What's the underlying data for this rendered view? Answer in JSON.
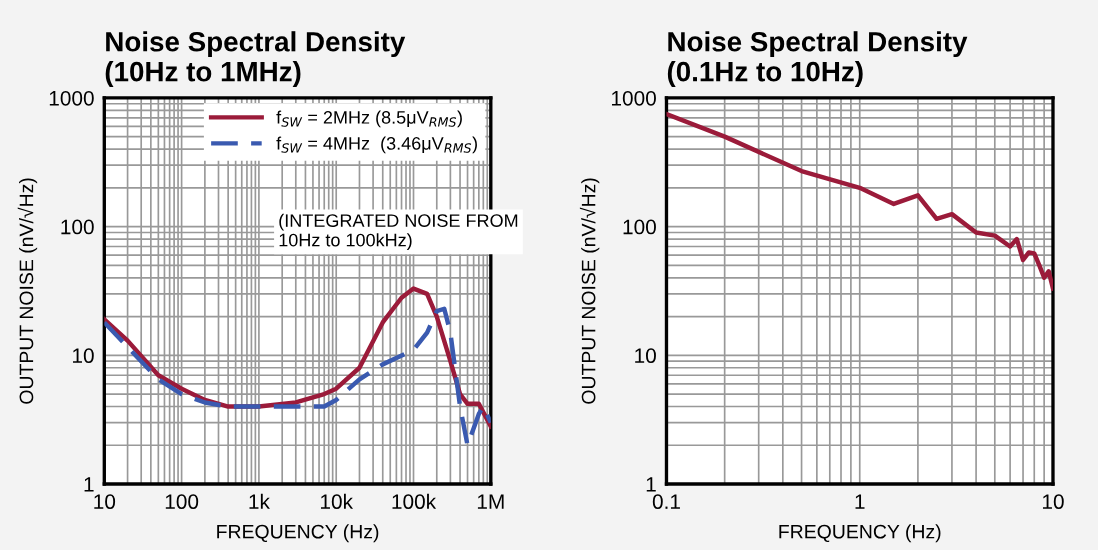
{
  "chart_data": [
    {
      "type": "line",
      "title": "Noise Spectral Density\n(10Hz to 1MHz)",
      "xlabel": "FREQUENCY (Hz)",
      "ylabel": "OUTPUT NOISE (nV/√Hz)",
      "log": "xy",
      "grid": true,
      "legend": "top right",
      "xlim": [
        10,
        1000000
      ],
      "xticks": [
        10,
        100,
        {
          "value": 1000,
          "label": "1k"
        },
        {
          "value": 10000,
          "label": "10k"
        },
        {
          "value": 100000,
          "label": "100k"
        },
        {
          "value": 1000000,
          "label": "1M"
        }
      ],
      "ylim": [
        1,
        1000
      ],
      "yticks": [
        1,
        10,
        100,
        1000
      ],
      "annotations": [
        "(INTEGRATED NOISE FROM\n10Hz to 100kHz)"
      ],
      "series": [
        {
          "name": "f$_{SW}$ = 2MHz (8.5μV$_{RMS}$)",
          "color": "#9b1b3a",
          "line_style": "solid",
          "x": [
            10,
            20,
            50,
            100,
            200,
            400,
            1000,
            3000,
            7000,
            10000,
            20000,
            40000,
            70000,
            100000,
            150000,
            200000,
            300000,
            400000,
            500000,
            700000,
            1000000
          ],
          "values": [
            19,
            13,
            7,
            5.5,
            4.5,
            4,
            4,
            4.3,
            5,
            5.5,
            8,
            18,
            28,
            33,
            30,
            20,
            9,
            5,
            4.2,
            4.2,
            2.8
          ]
        },
        {
          "name": "f$_{SW}$ = 4MHz  (3.46μV$_{RMS}$)",
          "color": "#3a5ab0",
          "line_style": "dashed",
          "x": [
            10,
            50,
            100,
            200,
            400,
            1000,
            3000,
            7000,
            10000,
            20000,
            40000,
            100000,
            150000,
            200000,
            250000,
            300000,
            400000,
            500000,
            700000,
            800000,
            1000000
          ],
          "values": [
            18,
            6.5,
            5,
            4.3,
            4,
            4,
            4,
            4,
            4.5,
            6.5,
            8.5,
            11,
            15,
            22,
            23,
            15,
            4,
            2,
            3.5,
            4,
            3
          ]
        }
      ]
    },
    {
      "type": "line",
      "title": "Noise Spectral Density\n(0.1Hz to 10Hz)",
      "xlabel": "FREQUENCY (Hz)",
      "ylabel": "OUTPUT NOISE (nV/√Hz)",
      "log": "xy",
      "grid": true,
      "legend": false,
      "xlim": [
        0.1,
        10
      ],
      "xticks": [
        0.1,
        1,
        10
      ],
      "ylim": [
        1,
        1000
      ],
      "yticks": [
        1,
        10,
        100,
        1000
      ],
      "series": [
        {
          "color": "#9b1b3a",
          "line_style": "solid",
          "x": [
            0.1,
            0.2,
            0.5,
            1,
            1.5,
            2,
            2.5,
            3,
            4,
            5,
            6,
            6.5,
            7,
            7.5,
            8,
            8.5,
            9,
            9.5,
            10
          ],
          "values": [
            750,
            500,
            270,
            200,
            150,
            175,
            115,
            125,
            90,
            85,
            70,
            80,
            55,
            63,
            62,
            50,
            40,
            45,
            33
          ]
        }
      ]
    }
  ]
}
